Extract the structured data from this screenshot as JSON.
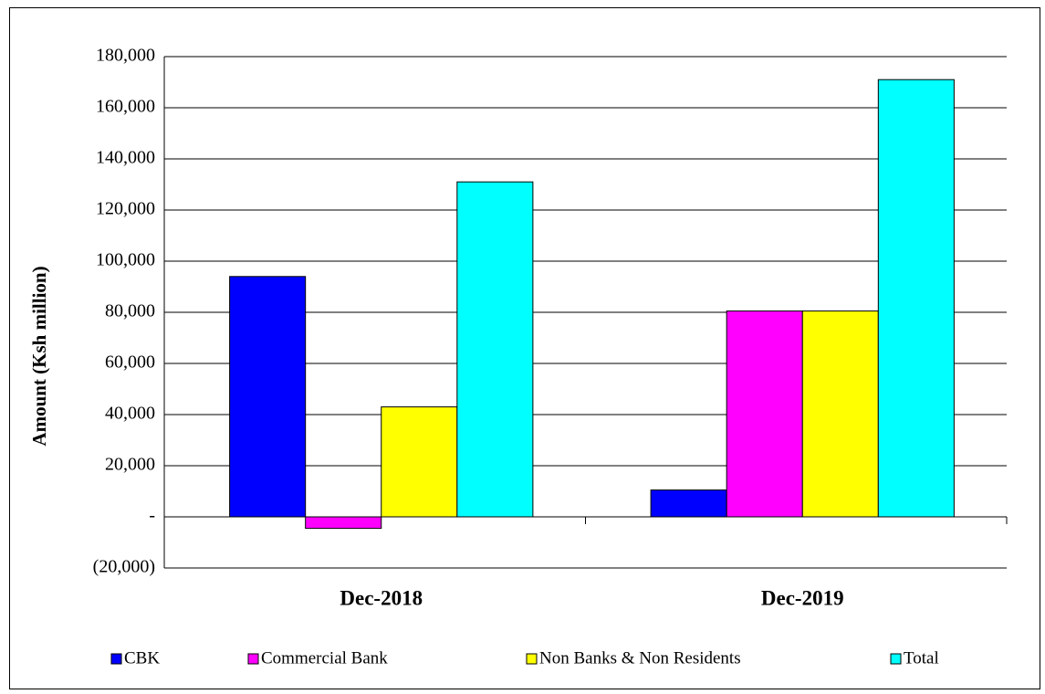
{
  "chart_data": {
    "type": "bar",
    "y_label": "Amount (Ksh million)",
    "categories": [
      "Dec-2018",
      "Dec-2019"
    ],
    "series": [
      {
        "name": "CBK",
        "color": "#0000ff",
        "values": [
          94000,
          10500
        ]
      },
      {
        "name": "Commercial Bank",
        "color": "#ff00ff",
        "values": [
          -4500,
          80500
        ]
      },
      {
        "name": "Non Banks & Non Residents",
        "color": "#ffff00",
        "values": [
          43000,
          80500
        ]
      },
      {
        "name": "Total",
        "color": "#00ffff",
        "values": [
          131000,
          171000
        ]
      }
    ],
    "ylim": [
      -20000,
      180000
    ],
    "yticks": [
      {
        "value": -20000,
        "label": "(20,000)"
      },
      {
        "value": 0,
        "label": "-"
      },
      {
        "value": 20000,
        "label": "20,000"
      },
      {
        "value": 40000,
        "label": "40,000"
      },
      {
        "value": 60000,
        "label": "60,000"
      },
      {
        "value": 80000,
        "label": "80,000"
      },
      {
        "value": 100000,
        "label": "100,000"
      },
      {
        "value": 120000,
        "label": "120,000"
      },
      {
        "value": 140000,
        "label": "140,000"
      },
      {
        "value": 160000,
        "label": "160,000"
      },
      {
        "value": 180000,
        "label": "180,000"
      }
    ],
    "grid": true,
    "legend": "bottom"
  }
}
